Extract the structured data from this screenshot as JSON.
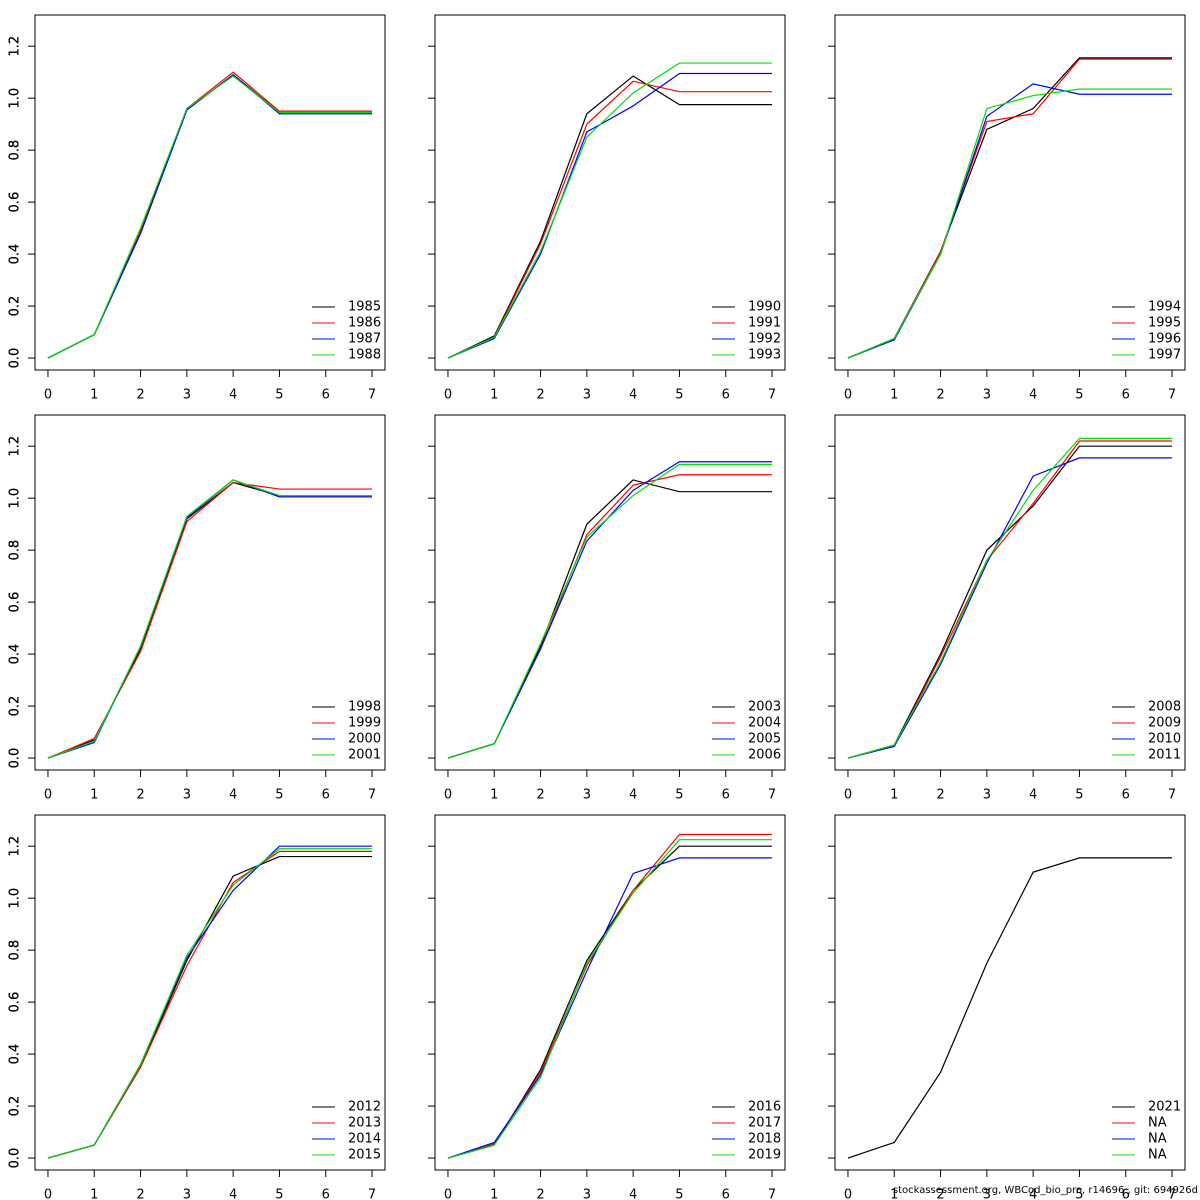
{
  "chart_data": [
    {
      "type": "line",
      "x": [
        0,
        1,
        2,
        3,
        4,
        5,
        6,
        7
      ],
      "xlim": [
        -0.28,
        7.28
      ],
      "xticks": [
        0,
        1,
        2,
        3,
        4,
        5,
        6,
        7
      ],
      "ylim": [
        -0.046,
        1.32
      ],
      "yticks": [
        {
          "value": 0,
          "label": "0.0"
        },
        0.2,
        0.4,
        0.6,
        0.8,
        {
          "value": 1,
          "label": "1.0"
        },
        1.2
      ],
      "legend": "bottomright",
      "series": [
        {
          "name": "1985",
          "color": "#000000",
          "values": [
            0,
            0.09,
            0.48,
            0.955,
            1.09,
            0.945,
            0.945,
            0.945
          ]
        },
        {
          "name": "1986",
          "color": "#ff0000",
          "values": [
            0,
            0.09,
            0.49,
            0.96,
            1.1,
            0.95,
            0.95,
            0.95
          ]
        },
        {
          "name": "1987",
          "color": "#0000ff",
          "values": [
            0,
            0.09,
            0.48,
            0.955,
            1.09,
            0.94,
            0.94,
            0.94
          ]
        },
        {
          "name": "1988",
          "color": "#00dd00",
          "values": [
            0,
            0.09,
            0.5,
            0.96,
            1.085,
            0.945,
            0.945,
            0.945
          ]
        }
      ]
    },
    {
      "type": "line",
      "x": [
        0,
        1,
        2,
        3,
        4,
        5,
        6,
        7
      ],
      "xlim": [
        -0.28,
        7.28
      ],
      "xticks": [
        0,
        1,
        2,
        3,
        4,
        5,
        6,
        7
      ],
      "ylim": [
        -0.046,
        1.32
      ],
      "yticks": [
        {
          "value": 0,
          "label": "0.0"
        },
        0.2,
        0.4,
        0.6,
        0.8,
        {
          "value": 1,
          "label": "1.0"
        },
        1.2
      ],
      "legend": "bottomright",
      "series": [
        {
          "name": "1990",
          "color": "#000000",
          "values": [
            0,
            0.085,
            0.45,
            0.94,
            1.085,
            0.975,
            0.975,
            0.975
          ]
        },
        {
          "name": "1991",
          "color": "#ff0000",
          "values": [
            0,
            0.08,
            0.44,
            0.9,
            1.065,
            1.025,
            1.025,
            1.025
          ]
        },
        {
          "name": "1992",
          "color": "#0000ff",
          "values": [
            0,
            0.075,
            0.4,
            0.87,
            0.97,
            1.095,
            1.095,
            1.095
          ]
        },
        {
          "name": "1993",
          "color": "#00dd00",
          "values": [
            0,
            0.08,
            0.41,
            0.85,
            1.02,
            1.135,
            1.135,
            1.135
          ]
        }
      ]
    },
    {
      "type": "line",
      "x": [
        0,
        1,
        2,
        3,
        4,
        5,
        6,
        7
      ],
      "xlim": [
        -0.28,
        7.28
      ],
      "xticks": [
        0,
        1,
        2,
        3,
        4,
        5,
        6,
        7
      ],
      "ylim": [
        -0.046,
        1.32
      ],
      "yticks": [
        {
          "value": 0,
          "label": "0.0"
        },
        0.2,
        0.4,
        0.6,
        0.8,
        {
          "value": 1,
          "label": "1.0"
        },
        1.2
      ],
      "legend": "bottomright",
      "series": [
        {
          "name": "1994",
          "color": "#000000",
          "values": [
            0,
            0.075,
            0.41,
            0.88,
            0.96,
            1.155,
            1.155,
            1.155
          ]
        },
        {
          "name": "1995",
          "color": "#ff0000",
          "values": [
            0,
            0.075,
            0.41,
            0.91,
            0.94,
            1.15,
            1.15,
            1.15
          ]
        },
        {
          "name": "1996",
          "color": "#0000ff",
          "values": [
            0,
            0.07,
            0.4,
            0.93,
            1.055,
            1.015,
            1.015,
            1.015
          ]
        },
        {
          "name": "1997",
          "color": "#00dd00",
          "values": [
            0,
            0.075,
            0.4,
            0.96,
            1.01,
            1.035,
            1.035,
            1.035
          ]
        }
      ]
    },
    {
      "type": "line",
      "x": [
        0,
        1,
        2,
        3,
        4,
        5,
        6,
        7
      ],
      "xlim": [
        -0.28,
        7.28
      ],
      "xticks": [
        0,
        1,
        2,
        3,
        4,
        5,
        6,
        7
      ],
      "ylim": [
        -0.046,
        1.32
      ],
      "yticks": [
        {
          "value": 0,
          "label": "0.0"
        },
        0.2,
        0.4,
        0.6,
        0.8,
        {
          "value": 1,
          "label": "1.0"
        },
        1.2
      ],
      "legend": "bottomright",
      "series": [
        {
          "name": "1998",
          "color": "#000000",
          "values": [
            0,
            0.07,
            0.42,
            0.92,
            1.06,
            1.01,
            1.01,
            1.01
          ]
        },
        {
          "name": "1999",
          "color": "#ff0000",
          "values": [
            0,
            0.075,
            0.41,
            0.91,
            1.06,
            1.035,
            1.035,
            1.035
          ]
        },
        {
          "name": "2000",
          "color": "#0000ff",
          "values": [
            0,
            0.06,
            0.43,
            0.925,
            1.07,
            1.005,
            1.005,
            1.005
          ]
        },
        {
          "name": "2001",
          "color": "#00dd00",
          "values": [
            0,
            0.065,
            0.43,
            0.93,
            1.07,
            1.01,
            1.01,
            1.01
          ]
        }
      ]
    },
    {
      "type": "line",
      "x": [
        0,
        1,
        2,
        3,
        4,
        5,
        6,
        7
      ],
      "xlim": [
        -0.28,
        7.28
      ],
      "xticks": [
        0,
        1,
        2,
        3,
        4,
        5,
        6,
        7
      ],
      "ylim": [
        -0.046,
        1.32
      ],
      "yticks": [
        {
          "value": 0,
          "label": "0.0"
        },
        0.2,
        0.4,
        0.6,
        0.8,
        {
          "value": 1,
          "label": "1.0"
        },
        1.2
      ],
      "legend": "bottomright",
      "series": [
        {
          "name": "2003",
          "color": "#000000",
          "values": [
            0,
            0.055,
            0.43,
            0.9,
            1.07,
            1.025,
            1.025,
            1.025
          ]
        },
        {
          "name": "2004",
          "color": "#ff0000",
          "values": [
            0,
            0.055,
            0.42,
            0.86,
            1.05,
            1.09,
            1.09,
            1.09
          ]
        },
        {
          "name": "2005",
          "color": "#0000ff",
          "values": [
            0,
            0.055,
            0.42,
            0.835,
            1.03,
            1.14,
            1.14,
            1.14
          ]
        },
        {
          "name": "2006",
          "color": "#00dd00",
          "values": [
            0,
            0.055,
            0.44,
            0.85,
            1.01,
            1.13,
            1.13,
            1.13
          ]
        }
      ]
    },
    {
      "type": "line",
      "x": [
        0,
        1,
        2,
        3,
        4,
        5,
        6,
        7
      ],
      "xlim": [
        -0.28,
        7.28
      ],
      "xticks": [
        0,
        1,
        2,
        3,
        4,
        5,
        6,
        7
      ],
      "ylim": [
        -0.046,
        1.32
      ],
      "yticks": [
        {
          "value": 0,
          "label": "0.0"
        },
        0.2,
        0.4,
        0.6,
        0.8,
        {
          "value": 1,
          "label": "1.0"
        },
        1.2
      ],
      "legend": "bottomright",
      "series": [
        {
          "name": "2008",
          "color": "#000000",
          "values": [
            0,
            0.05,
            0.4,
            0.8,
            0.97,
            1.2,
            1.2,
            1.2
          ]
        },
        {
          "name": "2009",
          "color": "#ff0000",
          "values": [
            0,
            0.045,
            0.39,
            0.76,
            0.98,
            1.22,
            1.22,
            1.22
          ]
        },
        {
          "name": "2010",
          "color": "#0000ff",
          "values": [
            0,
            0.045,
            0.36,
            0.75,
            1.085,
            1.155,
            1.155,
            1.155
          ]
        },
        {
          "name": "2011",
          "color": "#00dd00",
          "values": [
            0,
            0.05,
            0.37,
            0.76,
            1.03,
            1.23,
            1.23,
            1.23
          ]
        }
      ]
    },
    {
      "type": "line",
      "x": [
        0,
        1,
        2,
        3,
        4,
        5,
        6,
        7
      ],
      "xlim": [
        -0.28,
        7.28
      ],
      "xticks": [
        0,
        1,
        2,
        3,
        4,
        5,
        6,
        7
      ],
      "ylim": [
        -0.046,
        1.32
      ],
      "yticks": [
        {
          "value": 0,
          "label": "0.0"
        },
        0.2,
        0.4,
        0.6,
        0.8,
        {
          "value": 1,
          "label": "1.0"
        },
        1.2
      ],
      "legend": "bottomright",
      "series": [
        {
          "name": "2012",
          "color": "#000000",
          "values": [
            0,
            0.05,
            0.35,
            0.76,
            1.085,
            1.16,
            1.16,
            1.16
          ]
        },
        {
          "name": "2013",
          "color": "#ff0000",
          "values": [
            0,
            0.05,
            0.35,
            0.74,
            1.06,
            1.18,
            1.18,
            1.18
          ]
        },
        {
          "name": "2014",
          "color": "#0000ff",
          "values": [
            0,
            0.05,
            0.36,
            0.77,
            1.03,
            1.2,
            1.2,
            1.2
          ]
        },
        {
          "name": "2015",
          "color": "#00dd00",
          "values": [
            0,
            0.05,
            0.36,
            0.78,
            1.05,
            1.19,
            1.19,
            1.19
          ]
        }
      ]
    },
    {
      "type": "line",
      "x": [
        0,
        1,
        2,
        3,
        4,
        5,
        6,
        7
      ],
      "xlim": [
        -0.28,
        7.28
      ],
      "xticks": [
        0,
        1,
        2,
        3,
        4,
        5,
        6,
        7
      ],
      "ylim": [
        -0.046,
        1.32
      ],
      "yticks": [
        {
          "value": 0,
          "label": "0.0"
        },
        0.2,
        0.4,
        0.6,
        0.8,
        {
          "value": 1,
          "label": "1.0"
        },
        1.2
      ],
      "legend": "bottomright",
      "series": [
        {
          "name": "2016",
          "color": "#000000",
          "values": [
            0,
            0.05,
            0.34,
            0.76,
            1.03,
            1.2,
            1.2,
            1.2
          ]
        },
        {
          "name": "2017",
          "color": "#ff0000",
          "values": [
            0,
            0.055,
            0.33,
            0.74,
            1.03,
            1.245,
            1.245,
            1.245
          ]
        },
        {
          "name": "2018",
          "color": "#0000ff",
          "values": [
            0,
            0.06,
            0.32,
            0.72,
            1.095,
            1.155,
            1.155,
            1.155
          ]
        },
        {
          "name": "2019",
          "color": "#00dd00",
          "values": [
            0,
            0.05,
            0.31,
            0.75,
            1.02,
            1.225,
            1.225,
            1.225
          ]
        }
      ]
    },
    {
      "type": "line",
      "x": [
        0,
        1,
        2,
        3,
        4,
        5,
        6,
        7
      ],
      "xlim": [
        -0.28,
        7.28
      ],
      "xticks": [
        0,
        1,
        2,
        3,
        4,
        5,
        6,
        7
      ],
      "ylim": [
        -0.046,
        1.32
      ],
      "yticks": [
        {
          "value": 0,
          "label": "0.0"
        },
        0.2,
        0.4,
        0.6,
        0.8,
        {
          "value": 1,
          "label": "1.0"
        },
        1.2
      ],
      "legend": "bottomright",
      "series": [
        {
          "name": "2021",
          "color": "#000000",
          "values": [
            0,
            0.06,
            0.33,
            0.75,
            1.1,
            1.155,
            1.155,
            1.155
          ]
        },
        {
          "name": "NA",
          "color": "#ff0000",
          "values": [
            null,
            null,
            null,
            null,
            null,
            null,
            null,
            null
          ]
        },
        {
          "name": "NA",
          "color": "#0000ff",
          "values": [
            null,
            null,
            null,
            null,
            null,
            null,
            null,
            null
          ]
        },
        {
          "name": "NA",
          "color": "#00dd00",
          "values": [
            null,
            null,
            null,
            null,
            null,
            null,
            null,
            null
          ]
        }
      ]
    }
  ],
  "footer": "stockassessment.org, WBCod_bio_pro, r14696 , git: 694926d"
}
